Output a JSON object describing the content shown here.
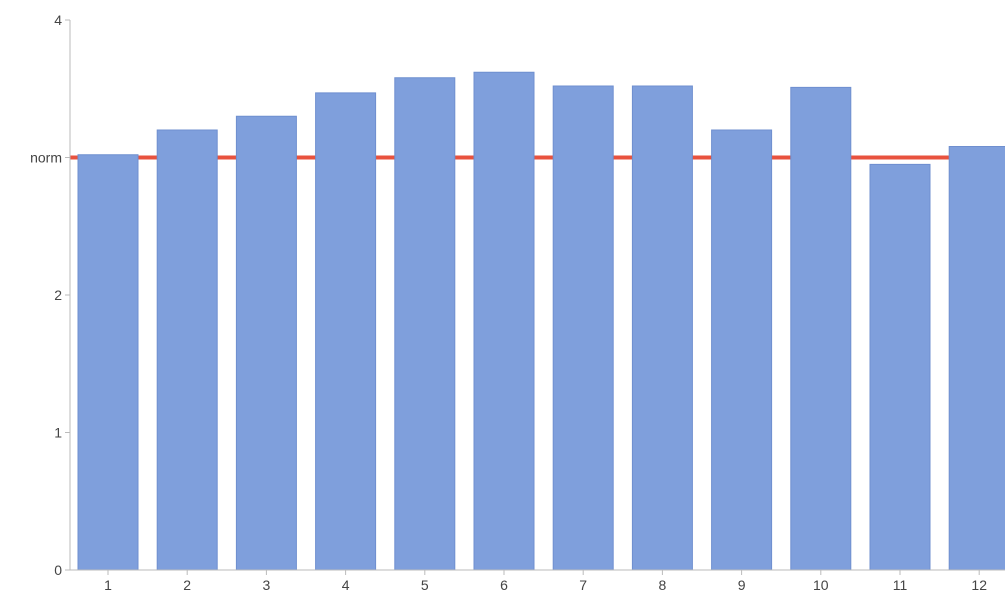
{
  "chart_data": {
    "type": "bar",
    "categories": [
      "1",
      "2",
      "3",
      "4",
      "5",
      "6",
      "7",
      "8",
      "9",
      "10",
      "11",
      "12"
    ],
    "values": [
      3.02,
      3.2,
      3.3,
      3.47,
      3.58,
      3.62,
      3.52,
      3.52,
      3.2,
      3.51,
      2.95,
      3.08
    ],
    "ylim": [
      0,
      4
    ],
    "yticks": [
      {
        "value": 0,
        "label": "0"
      },
      {
        "value": 1,
        "label": "1"
      },
      {
        "value": 2,
        "label": "2"
      },
      {
        "value": 3,
        "label": "norm"
      },
      {
        "value": 4,
        "label": "4"
      }
    ],
    "reference_line": {
      "value": 3.0,
      "label": "norm",
      "color": "#e8523e"
    },
    "bar_color": "#7f9fdc",
    "bar_edge_color": "#6f8fcf",
    "axis_color": "#bbbbbb",
    "grid": false,
    "legend": "none"
  }
}
